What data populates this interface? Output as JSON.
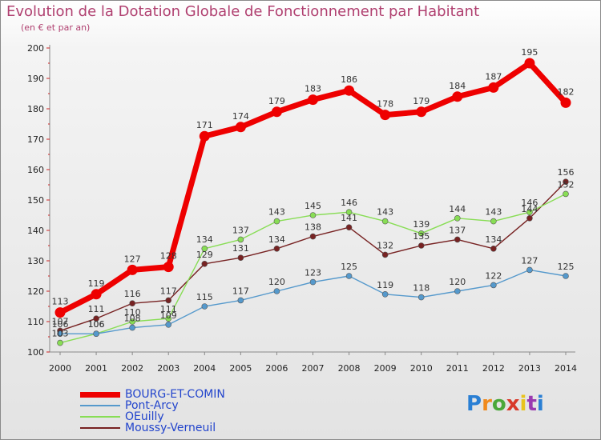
{
  "title": "Evolution de la Dotation Globale de Fonctionnement par Habitant",
  "subtitle": "(en € et par an)",
  "logo_text": "Proxiti",
  "chart_data": {
    "type": "line",
    "title": "Evolution de la Dotation Globale de Fonctionnement par Habitant",
    "ylabel": "(en € et par an)",
    "xlabel": "",
    "ylim": [
      100,
      200
    ],
    "yticks": [
      100,
      110,
      120,
      130,
      140,
      150,
      160,
      170,
      180,
      190,
      200
    ],
    "categories": [
      "2000",
      "2001",
      "2002",
      "2003",
      "2004",
      "2005",
      "2006",
      "2007",
      "2008",
      "2009",
      "2010",
      "2011",
      "2012",
      "2013",
      "2014"
    ],
    "legend_position": "bottom-left",
    "grid": false,
    "series": [
      {
        "name": "BOURG-ET-COMIN",
        "color": "#ee0000",
        "values": [
          113,
          119,
          127,
          128,
          171,
          174,
          179,
          183,
          186,
          178,
          179,
          184,
          187,
          195,
          182
        ]
      },
      {
        "name": "Pont-Arcy",
        "color": "#5599cc",
        "values": [
          106,
          106,
          108,
          109,
          115,
          117,
          120,
          123,
          125,
          119,
          118,
          120,
          122,
          127,
          125
        ]
      },
      {
        "name": "OEuilly",
        "color": "#88dd55",
        "values": [
          103,
          106,
          110,
          111,
          134,
          137,
          143,
          145,
          146,
          143,
          139,
          144,
          143,
          146,
          152
        ]
      },
      {
        "name": "Moussy-Verneuil",
        "color": "#772222",
        "values": [
          107,
          111,
          116,
          117,
          129,
          131,
          134,
          138,
          141,
          132,
          135,
          137,
          134,
          144,
          156
        ]
      }
    ]
  }
}
